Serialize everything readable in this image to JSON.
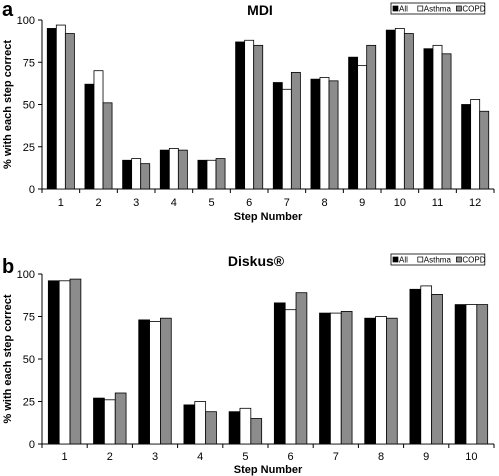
{
  "chart_data": [
    {
      "panel": "a",
      "type": "bar",
      "title": "MDI",
      "xlabel": "Step Number",
      "ylabel": "% with each step correct",
      "ylim": [
        0,
        100
      ],
      "yticks": [
        0,
        25,
        50,
        75,
        100
      ],
      "categories": [
        "1",
        "2",
        "3",
        "4",
        "5",
        "6",
        "7",
        "8",
        "9",
        "10",
        "11",
        "12"
      ],
      "series": [
        {
          "name": "All",
          "color": "#000000",
          "values": [
            95,
            62,
            17,
            23,
            17,
            87,
            63,
            65,
            78,
            94,
            83,
            50
          ]
        },
        {
          "name": "Asthma",
          "color": "#ffffff",
          "values": [
            97,
            70,
            18,
            24,
            17,
            88,
            59,
            66,
            73,
            95,
            85,
            53
          ]
        },
        {
          "name": "COPD",
          "color": "#8c8c8c",
          "values": [
            92,
            51,
            15,
            23,
            18,
            85,
            69,
            64,
            85,
            92,
            80,
            46
          ]
        }
      ],
      "legend_position": "top-right",
      "grid": false
    },
    {
      "panel": "b",
      "type": "bar",
      "title": "Diskus®",
      "xlabel": "Step Number",
      "ylabel": "% with each step correct",
      "ylim": [
        0,
        100
      ],
      "yticks": [
        0,
        25,
        50,
        75,
        100
      ],
      "categories": [
        "1",
        "2",
        "3",
        "4",
        "5",
        "6",
        "7",
        "8",
        "9",
        "10"
      ],
      "series": [
        {
          "name": "All",
          "color": "#000000",
          "values": [
            96,
            27,
            73,
            23,
            19,
            83,
            77,
            74,
            91,
            82
          ]
        },
        {
          "name": "Asthma",
          "color": "#ffffff",
          "values": [
            96,
            26,
            72,
            25,
            21,
            79,
            77,
            75,
            93,
            82
          ]
        },
        {
          "name": "COPD",
          "color": "#8c8c8c",
          "values": [
            97,
            30,
            74,
            19,
            15,
            89,
            78,
            74,
            88,
            82
          ]
        }
      ],
      "legend_position": "top-right",
      "grid": false
    }
  ]
}
